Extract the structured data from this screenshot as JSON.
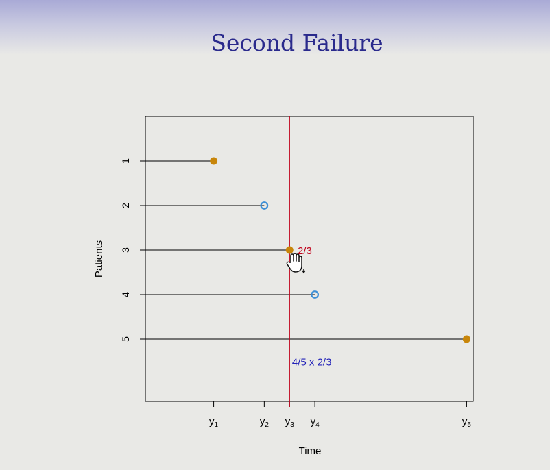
{
  "slide": {
    "title": "Second Failure"
  },
  "chart_data": {
    "type": "scatter",
    "title": "",
    "xlabel": "Time",
    "ylabel": "Patients",
    "x_ticks": [
      {
        "key": "y1",
        "label": "y",
        "sub": "1",
        "x": 1
      },
      {
        "key": "y2",
        "label": "y",
        "sub": "2",
        "x": 2
      },
      {
        "key": "y3",
        "label": "y",
        "sub": "3",
        "x": 2.5
      },
      {
        "key": "y4",
        "label": "y",
        "sub": "4",
        "x": 3
      },
      {
        "key": "y5",
        "label": "y",
        "sub": "5",
        "x": 6
      }
    ],
    "y_ticks": [
      "1",
      "2",
      "3",
      "4",
      "5"
    ],
    "patients": [
      {
        "patient": "1",
        "time": 1,
        "status": "failure"
      },
      {
        "patient": "2",
        "time": 2,
        "status": "censored"
      },
      {
        "patient": "3",
        "time": 2.5,
        "status": "failure"
      },
      {
        "patient": "4",
        "time": 3,
        "status": "censored"
      },
      {
        "patient": "5",
        "time": 6,
        "status": "failure"
      }
    ],
    "xlim": [
      -0.35,
      6.13
    ],
    "ylim": [
      0,
      6.4
    ],
    "vertical_line": {
      "x": 2.5,
      "color": "#c0001a"
    },
    "annotations": [
      {
        "name": "interval-fraction",
        "text": "2/3",
        "x": 2.66,
        "y": 3,
        "color": "#c0001a"
      },
      {
        "name": "survival-product",
        "text": "4/5 x 2/3",
        "x": 2.55,
        "y": 5.5,
        "color": "#2222b8"
      }
    ],
    "colors": {
      "failure": "#c8860a",
      "censored": "#3d8fd6",
      "line": "#000000",
      "axis": "#000000"
    },
    "grid": false,
    "legend": "none"
  },
  "cursor": {
    "icon": "hand-cursor-icon"
  }
}
